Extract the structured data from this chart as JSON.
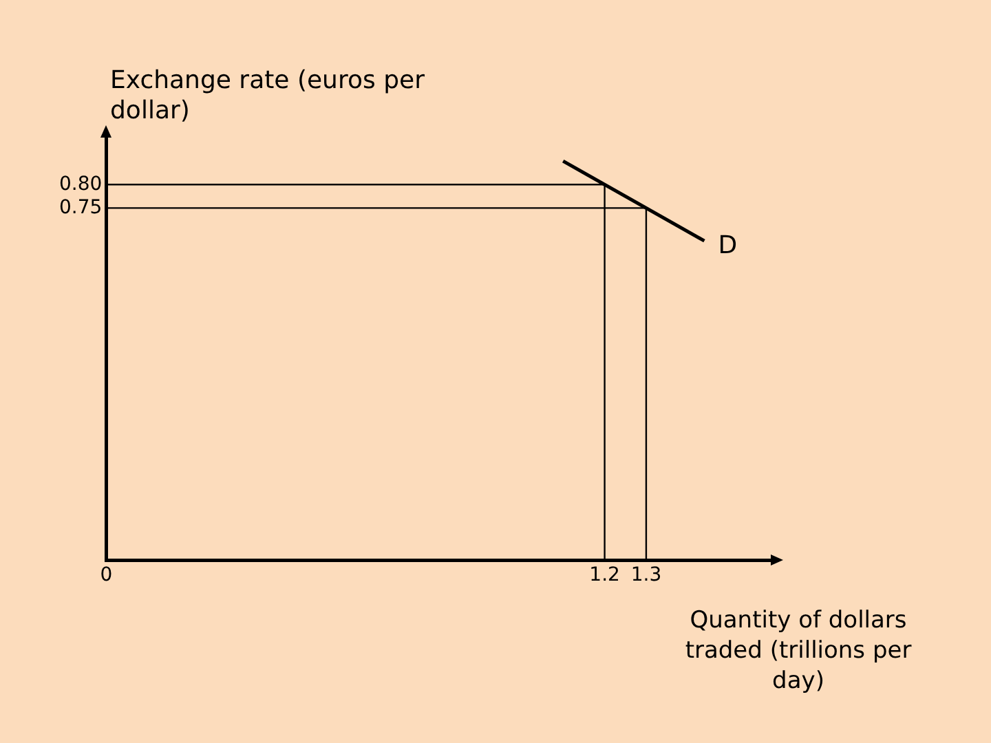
{
  "chart_data": {
    "type": "line",
    "xlabel": "Quantity of dollars traded (trillions per day)",
    "ylabel": "Exchange rate (euros per dollar)",
    "xlim": [
      0,
      1.6
    ],
    "ylim": [
      0,
      0.9
    ],
    "xticks": [
      0,
      1.2,
      1.3
    ],
    "yticks": [
      0.75,
      {
        "value": 0.8,
        "label": "0.80"
      }
    ],
    "series": [
      {
        "name": "D",
        "color": "#000000",
        "x": [
          1.1,
          1.44
        ],
        "values": [
          0.85,
          0.68
        ]
      },
      {
        "color": "#000000",
        "x": [
          0,
          1.2,
          1.2
        ],
        "values": [
          0.8,
          0.8,
          0
        ]
      },
      {
        "color": "#000000",
        "x": [
          0,
          1.3,
          1.3
        ],
        "values": [
          0.75,
          0.75,
          0
        ]
      }
    ],
    "grid": false,
    "legend": false,
    "marker": "none",
    "line_style": "solid"
  }
}
